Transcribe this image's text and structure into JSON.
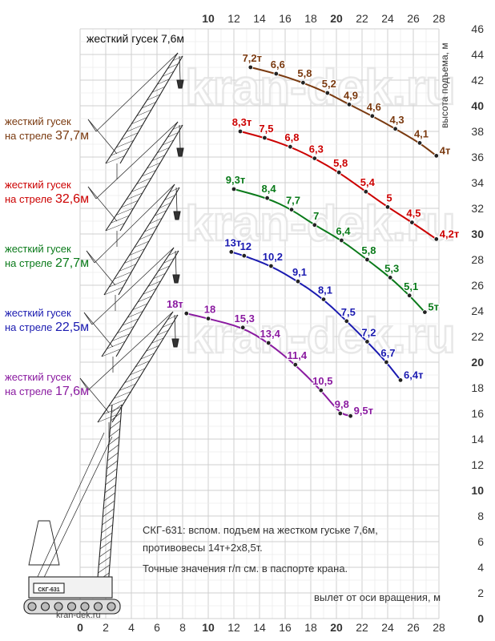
{
  "chart_data": {
    "type": "line",
    "title": "жесткий гусек 7,6м",
    "xlabel": "вылет от оси вращения, м",
    "ylabel": "высота подъема, м",
    "xlim": [
      0,
      28
    ],
    "ylim": [
      0,
      46
    ],
    "x_ticks": [
      "0",
      "2",
      "4",
      "6",
      "8",
      "10",
      "12",
      "14",
      "16",
      "18",
      "20",
      "22",
      "24",
      "26",
      "28"
    ],
    "y_ticks": [
      "0",
      "2",
      "4",
      "6",
      "8",
      "10",
      "12",
      "14",
      "16",
      "18",
      "20",
      "22",
      "24",
      "26",
      "28",
      "30",
      "32",
      "34",
      "36",
      "38",
      "40",
      "42",
      "44",
      "46"
    ],
    "grid": true,
    "series": [
      {
        "name_line1": "жесткий гусек",
        "name_line2": "на стреле 37,7м",
        "color": "#7a3a10",
        "x": [
          13.3,
          15.3,
          17.4,
          19.3,
          21.0,
          22.8,
          24.6,
          26.5,
          27.8
        ],
        "y": [
          43.0,
          42.5,
          41.8,
          41.0,
          40.1,
          39.2,
          38.2,
          37.1,
          36.1
        ],
        "labels": [
          "7,2т",
          "6,6",
          "5,8",
          "5,2",
          "4,9",
          "4,6",
          "4,3",
          "4,1",
          "4т"
        ]
      },
      {
        "name_line1": "жесткий гусек",
        "name_line2": "на стреле 32,6м",
        "color": "#cc0000",
        "x": [
          12.5,
          14.4,
          16.4,
          18.3,
          20.2,
          22.3,
          24.0,
          25.9,
          27.8
        ],
        "y": [
          38.0,
          37.5,
          36.8,
          35.9,
          34.8,
          33.3,
          32.1,
          30.9,
          29.6
        ],
        "labels": [
          "8,3т",
          "7,5",
          "6,8",
          "6,3",
          "5,8",
          "5,4",
          "5",
          "4,5",
          "4,2т"
        ]
      },
      {
        "name_line1": "жесткий гусек",
        "name_line2": "на стреле 27,7м",
        "color": "#0a7a1a",
        "x": [
          12.0,
          14.6,
          16.5,
          18.3,
          20.4,
          22.4,
          24.2,
          25.7,
          26.9
        ],
        "y": [
          33.5,
          32.8,
          31.9,
          30.7,
          29.5,
          28.0,
          26.6,
          25.2,
          23.9
        ],
        "labels": [
          "9,3т",
          "8,4",
          "7,7",
          "7",
          "6,4",
          "5,8",
          "5,3",
          "5,1",
          "5т"
        ]
      },
      {
        "name_line1": "жесткий гусек",
        "name_line2": "на стреле 22,5м",
        "color": "#1a1ab0",
        "x": [
          11.8,
          12.8,
          14.9,
          17.0,
          19.0,
          20.8,
          22.4,
          23.9,
          25.0
        ],
        "y": [
          28.6,
          28.3,
          27.5,
          26.3,
          24.9,
          23.2,
          21.6,
          20.0,
          18.6
        ],
        "labels": [
          "13т",
          "12",
          "10,2",
          "9,1",
          "8,1",
          "7,5",
          "7,2",
          "6,7",
          "6,4т"
        ]
      },
      {
        "name_line1": "жесткий гусек",
        "name_line2": "на стреле 17,6м",
        "color": "#8a1aa0",
        "x": [
          8.3,
          10.0,
          12.7,
          14.7,
          16.8,
          18.8,
          20.3,
          21.1
        ],
        "y": [
          23.8,
          23.4,
          22.7,
          21.5,
          19.8,
          17.8,
          16.0,
          15.8
        ],
        "labels": [
          "18т",
          "18",
          "15,3",
          "13,4",
          "11,4",
          "10,5",
          "9,8",
          "9,5т"
        ]
      }
    ]
  },
  "watermark": "kran-dek.ru",
  "note": {
    "line1": "СКГ-631: вспом. подъем на жестком гуське 7,6м,",
    "line2": "противовесы 14т+2х8,5т.",
    "line3": "Точные значения г/п см. в паспорте крана."
  },
  "crane_plate": "СКГ-631",
  "logo": "kran-dek.ru"
}
